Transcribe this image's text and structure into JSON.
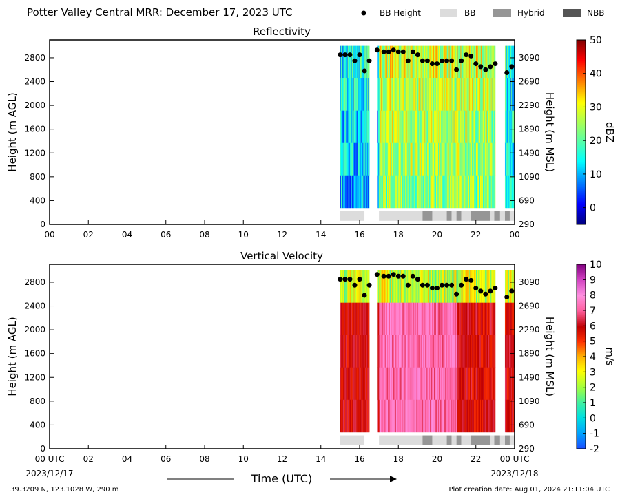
{
  "header": {
    "title": "Potter Valley Central MRR:  December 17, 2023 UTC",
    "legend": [
      {
        "label": "BB Height",
        "marker": "dot",
        "color": "#000000"
      },
      {
        "label": "BB",
        "marker": "rect",
        "color": "#dcdcdc"
      },
      {
        "label": "Hybrid",
        "marker": "rect",
        "color": "#969696"
      },
      {
        "label": "NBB",
        "marker": "rect",
        "color": "#555555"
      }
    ]
  },
  "x_ticks": [
    "00",
    "02",
    "04",
    "06",
    "08",
    "10",
    "12",
    "14",
    "16",
    "18",
    "20",
    "22",
    "00"
  ],
  "x_ticks_bottom": [
    "00 UTC",
    "02",
    "04",
    "06",
    "08",
    "10",
    "12",
    "14",
    "16",
    "18",
    "20",
    "22",
    "00 UTC"
  ],
  "start_date": "2023/12/17",
  "end_date": "2023/12/18",
  "x_label": "Time (UTC)",
  "footer": {
    "location": "39.3209 N, 123.1028 W, 290 m",
    "creation": "Plot creation date: Aug 01, 2024 21:11:04 UTC"
  },
  "chart_data": [
    {
      "type": "heatmap",
      "title": "Reflectivity",
      "ylabel": "Height (m AGL)",
      "ylabel_right": "Height (m MSL)",
      "xlim": [
        0,
        24
      ],
      "ylim": [
        0,
        3100
      ],
      "yticks": [
        0,
        400,
        800,
        1200,
        1600,
        2000,
        2400,
        2800
      ],
      "yticks_right": [
        290,
        690,
        1090,
        1490,
        1890,
        2290,
        2690,
        3090
      ],
      "colorbar": {
        "label": "dBZ",
        "min": -5,
        "max": 50,
        "ticks": [
          "0",
          "10",
          "20",
          "30",
          "40",
          "50"
        ],
        "tick_values": [
          0,
          10,
          20,
          30,
          40,
          50
        ],
        "colormap": "jet"
      },
      "data_time_ranges": [
        [
          15.0,
          16.5
        ],
        [
          16.9,
          23.0
        ],
        [
          23.5,
          24.0
        ]
      ],
      "data_height_range": [
        280,
        3000
      ],
      "bb_height": {
        "time": [
          15.0,
          15.25,
          15.5,
          15.75,
          16.0,
          16.25,
          16.5,
          16.9,
          17.25,
          17.5,
          17.75,
          18.0,
          18.25,
          18.5,
          18.75,
          19.0,
          19.25,
          19.5,
          19.75,
          20.0,
          20.25,
          20.5,
          20.75,
          21.0,
          21.25,
          21.5,
          21.75,
          22.0,
          22.25,
          22.5,
          22.75,
          23.0,
          23.6,
          23.85
        ],
        "height": [
          2850,
          2850,
          2850,
          2750,
          2850,
          2580,
          2750,
          2930,
          2900,
          2900,
          2930,
          2900,
          2900,
          2750,
          2900,
          2850,
          2750,
          2750,
          2700,
          2700,
          2750,
          2750,
          2750,
          2600,
          2750,
          2850,
          2830,
          2700,
          2650,
          2600,
          2650,
          2700,
          2550,
          2650
        ]
      },
      "bb_type_segments": [
        {
          "start": 15.0,
          "end": 16.25,
          "type": "BB"
        },
        {
          "start": 17.0,
          "end": 19.25,
          "type": "BB"
        },
        {
          "start": 19.25,
          "end": 19.75,
          "type": "Hybrid"
        },
        {
          "start": 19.75,
          "end": 20.5,
          "type": "BB"
        },
        {
          "start": 20.5,
          "end": 20.75,
          "type": "Hybrid"
        },
        {
          "start": 20.75,
          "end": 21.0,
          "type": "BB"
        },
        {
          "start": 21.0,
          "end": 21.25,
          "type": "Hybrid"
        },
        {
          "start": 21.25,
          "end": 21.75,
          "type": "BB"
        },
        {
          "start": 21.75,
          "end": 22.75,
          "type": "Hybrid"
        },
        {
          "start": 22.75,
          "end": 22.95,
          "type": "BB"
        },
        {
          "start": 22.95,
          "end": 23.25,
          "type": "Hybrid"
        },
        {
          "start": 23.25,
          "end": 23.5,
          "type": "BB"
        },
        {
          "start": 23.5,
          "end": 23.75,
          "type": "Hybrid"
        },
        {
          "start": 23.75,
          "end": 24.0,
          "type": "BB"
        }
      ]
    },
    {
      "type": "heatmap",
      "title": "Vertical Velocity",
      "ylabel": "Height (m AGL)",
      "ylabel_right": "Height (m MSL)",
      "xlim": [
        0,
        24
      ],
      "ylim": [
        0,
        3100
      ],
      "yticks": [
        0,
        400,
        800,
        1200,
        1600,
        2000,
        2400,
        2800
      ],
      "yticks_right": [
        290,
        690,
        1090,
        1490,
        1890,
        2290,
        2690,
        3090
      ],
      "colorbar": {
        "label": "m/s",
        "min": -2,
        "max": 10,
        "ticks": [
          "-2",
          "-1",
          "0",
          "1",
          "2",
          "3",
          "4",
          "5",
          "6",
          "7",
          "8",
          "9",
          "10"
        ],
        "tick_values": [
          -2,
          -1,
          0,
          1,
          2,
          3,
          4,
          5,
          6,
          7,
          8,
          9,
          10
        ],
        "colormap": "velocity"
      },
      "data_time_ranges": [
        [
          15.0,
          16.5
        ],
        [
          16.9,
          23.0
        ],
        [
          23.5,
          24.0
        ]
      ],
      "data_height_range": [
        280,
        3000
      ],
      "bb_height": {
        "time": [
          15.0,
          15.25,
          15.5,
          15.75,
          16.0,
          16.25,
          16.5,
          16.9,
          17.25,
          17.5,
          17.75,
          18.0,
          18.25,
          18.5,
          18.75,
          19.0,
          19.25,
          19.5,
          19.75,
          20.0,
          20.25,
          20.5,
          20.75,
          21.0,
          21.25,
          21.5,
          21.75,
          22.0,
          22.25,
          22.5,
          22.75,
          23.0,
          23.6,
          23.85
        ],
        "height": [
          2850,
          2850,
          2850,
          2750,
          2850,
          2580,
          2750,
          2930,
          2900,
          2900,
          2930,
          2900,
          2900,
          2750,
          2900,
          2850,
          2750,
          2750,
          2700,
          2700,
          2750,
          2750,
          2750,
          2600,
          2750,
          2850,
          2830,
          2700,
          2650,
          2600,
          2650,
          2700,
          2550,
          2650
        ]
      },
      "bb_type_segments": [
        {
          "start": 15.0,
          "end": 16.25,
          "type": "BB"
        },
        {
          "start": 17.0,
          "end": 19.25,
          "type": "BB"
        },
        {
          "start": 19.25,
          "end": 19.75,
          "type": "Hybrid"
        },
        {
          "start": 19.75,
          "end": 20.5,
          "type": "BB"
        },
        {
          "start": 20.5,
          "end": 20.75,
          "type": "Hybrid"
        },
        {
          "start": 20.75,
          "end": 21.0,
          "type": "BB"
        },
        {
          "start": 21.0,
          "end": 21.25,
          "type": "Hybrid"
        },
        {
          "start": 21.25,
          "end": 21.75,
          "type": "BB"
        },
        {
          "start": 21.75,
          "end": 22.75,
          "type": "Hybrid"
        },
        {
          "start": 22.75,
          "end": 22.95,
          "type": "BB"
        },
        {
          "start": 22.95,
          "end": 23.25,
          "type": "Hybrid"
        },
        {
          "start": 23.25,
          "end": 23.5,
          "type": "BB"
        },
        {
          "start": 23.5,
          "end": 23.75,
          "type": "Hybrid"
        },
        {
          "start": 23.75,
          "end": 24.0,
          "type": "BB"
        }
      ]
    }
  ]
}
